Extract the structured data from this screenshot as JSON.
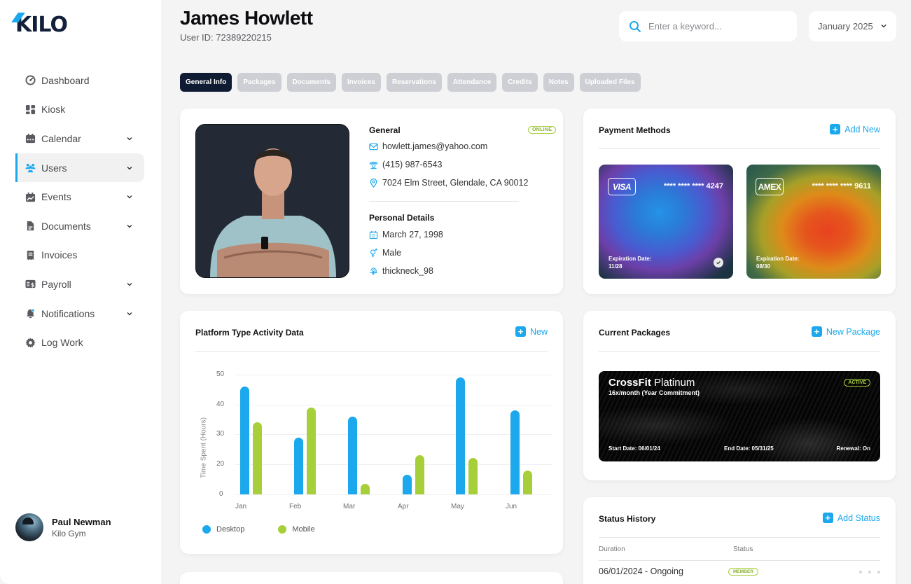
{
  "app": {
    "logo": "KILO",
    "brand_color": "#1ba8ec",
    "dark_color": "#0f1b33",
    "accent_green": "#a7cf3a"
  },
  "sidebar": {
    "items": [
      {
        "label": "Dashboard",
        "icon": "dashboard-icon",
        "has_chevron": false,
        "active": false
      },
      {
        "label": "Kiosk",
        "icon": "kiosk-icon",
        "has_chevron": false,
        "active": false
      },
      {
        "label": "Calendar",
        "icon": "calendar-icon",
        "has_chevron": true,
        "active": false
      },
      {
        "label": "Users",
        "icon": "users-icon",
        "has_chevron": true,
        "active": true
      },
      {
        "label": "Events",
        "icon": "events-icon",
        "has_chevron": true,
        "active": false
      },
      {
        "label": "Documents",
        "icon": "documents-icon",
        "has_chevron": true,
        "active": false
      },
      {
        "label": "Invoices",
        "icon": "invoices-icon",
        "has_chevron": false,
        "active": false
      },
      {
        "label": "Payroll",
        "icon": "payroll-icon",
        "has_chevron": true,
        "active": false
      },
      {
        "label": "Notifications",
        "icon": "bell-icon",
        "has_chevron": true,
        "active": false
      },
      {
        "label": "Log Work",
        "icon": "gear-icon",
        "has_chevron": false,
        "active": false
      }
    ],
    "profile": {
      "name": "Paul Newman",
      "org": "Kilo Gym"
    }
  },
  "header": {
    "title": "James Howlett",
    "subtitle": "User ID: 72389220215",
    "search_placeholder": "Enter a keyword...",
    "month": "January 2025"
  },
  "tabs": [
    {
      "label": "General Info",
      "active": true
    },
    {
      "label": "Packages",
      "active": false
    },
    {
      "label": "Documents",
      "active": false
    },
    {
      "label": "Invoices",
      "active": false
    },
    {
      "label": "Reservations",
      "active": false
    },
    {
      "label": "Attendance",
      "active": false
    },
    {
      "label": "Credits",
      "active": false
    },
    {
      "label": "Notes",
      "active": false
    },
    {
      "label": "Uploaded Files",
      "active": false
    }
  ],
  "general": {
    "section_title": "General",
    "status_badge": "ONLINE",
    "email": "howlett.james@yahoo.com",
    "phone": "(415) 987-6543",
    "address": "7024 Elm Street, Glendale, CA 90012",
    "personal_title": "Personal Details",
    "birthday": "March 27, 1998",
    "gender": "Male",
    "username": "thickneck_98"
  },
  "payment": {
    "title": "Payment Methods",
    "action": "Add New",
    "cards": [
      {
        "brand": "VISA",
        "number": "**** **** **** 4247",
        "exp_label": "Expiration Date:",
        "exp": "11/28",
        "default": true
      },
      {
        "brand": "AMEX",
        "number": "**** **** **** 9611",
        "exp_label": "Expiration Date:",
        "exp": "08/30",
        "default": false
      }
    ]
  },
  "activity": {
    "title": "Platform Type Activity Data",
    "action": "New"
  },
  "chart_data": {
    "type": "bar",
    "title": "Platform Type Activity Data",
    "xlabel": "",
    "ylabel": "Time Spent (Hours)",
    "categories": [
      "Jan",
      "Feb",
      "Mar",
      "Apr",
      "May",
      "Jun"
    ],
    "series": [
      {
        "name": "Desktop",
        "color": "#1ba8ec",
        "values": [
          46,
          29,
          36,
          13,
          49,
          38
        ]
      },
      {
        "name": "Mobile",
        "color": "#a7cf3a",
        "values": [
          34,
          39,
          7,
          23,
          22,
          16
        ]
      }
    ],
    "y_ticks": [
      0,
      20,
      30,
      40,
      50
    ],
    "ylim": [
      0,
      50
    ],
    "grid": true,
    "legend_position": "bottom-left"
  },
  "packages": {
    "title": "Current Packages",
    "action": "New Package",
    "current": {
      "name_bold": "CrossFit",
      "name_light": "Platinum",
      "desc": "16x/month (Year Commitment)",
      "badge": "ACTIVE",
      "start": "Start Date: 06/01/24",
      "end": "End Date: 05/31/25",
      "renewal": "Renewal: On"
    }
  },
  "status_history": {
    "title": "Status History",
    "action": "Add Status",
    "columns": [
      "Duration",
      "Status"
    ],
    "rows": [
      {
        "duration": "06/01/2024 - Ongoing",
        "status": "MEMBER"
      }
    ]
  }
}
